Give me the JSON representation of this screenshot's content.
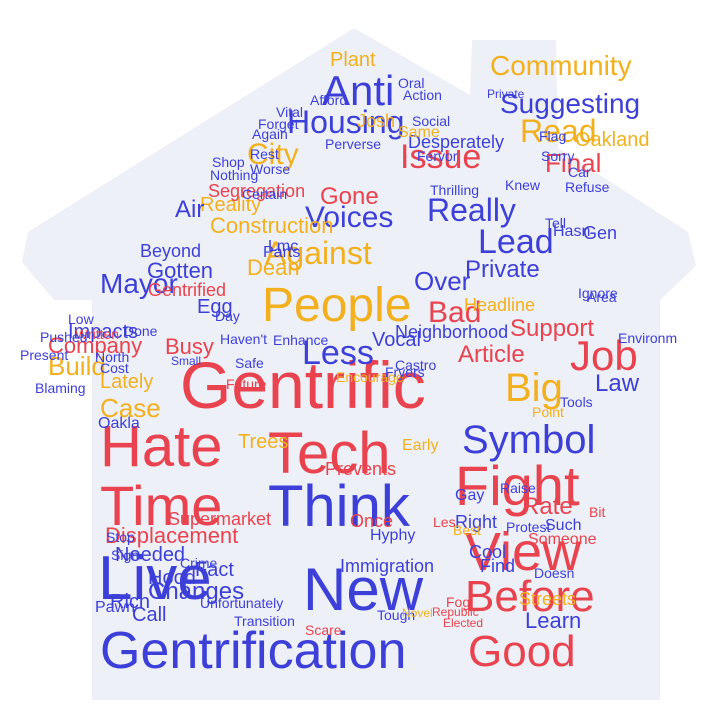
{
  "palette": {
    "blue": "#3d3fd9",
    "red": "#e8434e",
    "yellow": "#f2b01e",
    "bg": "#eef0f7"
  },
  "words": [
    "Gentrification",
    "Gentrific",
    "Tech",
    "Think",
    "New",
    "Live",
    "Time",
    "Hate",
    "Fight",
    "View",
    "Good",
    "Before",
    "People",
    "Symbol",
    "Job",
    "Big",
    "Anti",
    "Housing",
    "Community",
    "Read",
    "Lead",
    "Issue",
    "Against",
    "Really",
    "City",
    "Less",
    "Mayor",
    "Voices",
    "Bad",
    "Private",
    "Case",
    "Build",
    "Support",
    "Article",
    "Law",
    "Changes",
    "Displacement",
    "Rate",
    "Learn",
    "Busy",
    "Lately",
    "Gotten",
    "Gone",
    "Reality",
    "Oakland",
    "Suggesting",
    "Final",
    "Construction",
    "Company",
    "Impacts",
    "Gentrified",
    "Beyond",
    "Segregation",
    "Air",
    "Hood",
    "Needed",
    "Call",
    "Fact",
    "Rich",
    "Pawn",
    "Supermarket",
    "Trees",
    "Prevents",
    "Early",
    "Once",
    "Vocal",
    "Neighborhood",
    "Hyphy",
    "Immigration",
    "Headline",
    "Encourage",
    "Lmc",
    "Dean",
    "Egg",
    "Parts",
    "Over",
    "Right",
    "Find",
    "Streets",
    "Cool",
    "Someone",
    "Point",
    "Tools",
    "Doesn",
    "Such",
    "Best",
    "Private",
    "Desperately",
    "Perverse",
    "Same",
    "Josh",
    "Plant",
    "Bit",
    "Gay",
    "Les",
    "Scare",
    "Written",
    "Tough",
    "Novel",
    "Republic",
    "Elected",
    "Fog",
    "Oakla",
    "Blaming",
    "North",
    "Present",
    "Done",
    "Cost",
    "Pushed",
    "Low",
    "Enhance",
    "Safe",
    "Small",
    "Worse",
    "Nothing",
    "Shop",
    "Certain",
    "Rest",
    "Forget",
    "Vital",
    "Again",
    "Afford",
    "Oral",
    "Action",
    "Social",
    "Thrilling",
    "Sorry",
    "Car",
    "Flag",
    "Refuse",
    "Fervor",
    "Fryers",
    "Castro",
    "Knew",
    "Tell",
    "Hasn",
    "Gen",
    "Area",
    "Ignore",
    "Environm",
    "Raise",
    "Protest",
    "Unfortunately",
    "Transition",
    "Crime",
    "Sign",
    "Stop",
    "Haven't",
    "Future",
    "Day"
  ]
}
